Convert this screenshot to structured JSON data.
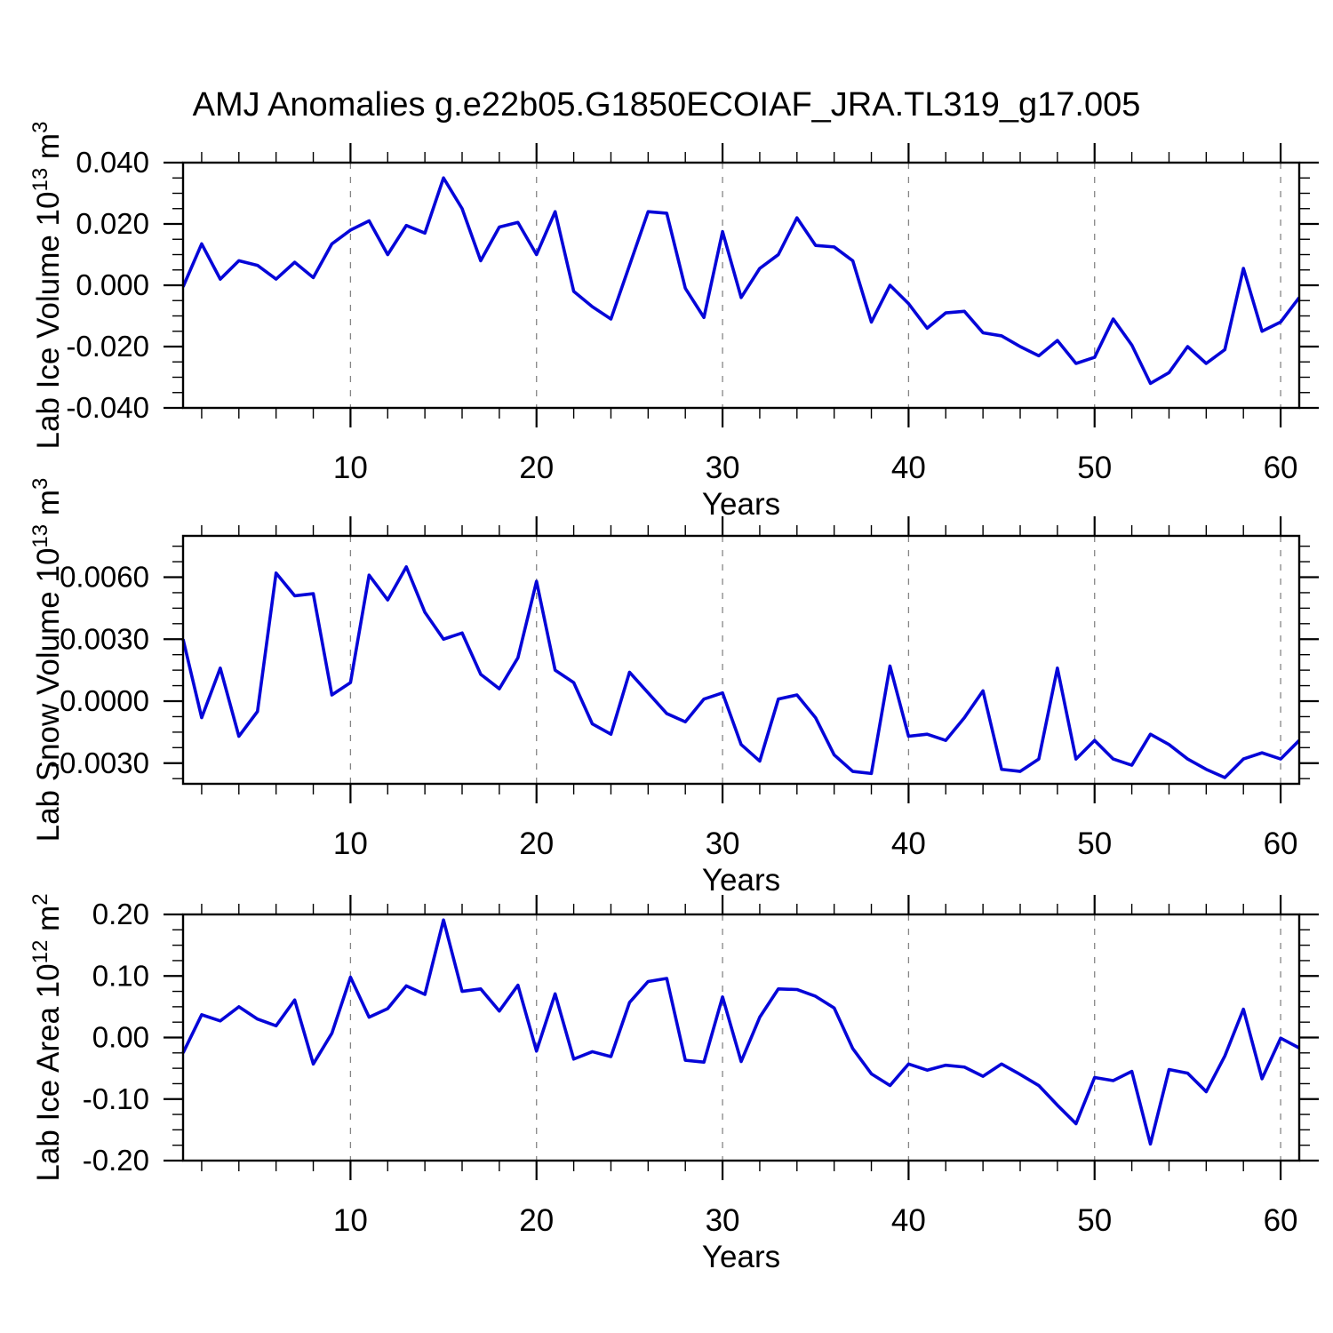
{
  "title": "AMJ Anomalies g.e22b05.G1850ECOIAF_JRA.TL319_g17.005",
  "colors": {
    "line": "#0505D8",
    "axis": "#000000",
    "grid": "#858585",
    "background": "#FFFFFF"
  },
  "xlabel": "Years",
  "x_tick_labels": [
    "10",
    "20",
    "30",
    "40",
    "50",
    "60"
  ],
  "chart_data": {
    "type": "line",
    "legend": "none",
    "grid": "vertical dashed lines at major x ticks",
    "x_label": "Years",
    "xlim": [
      1,
      61
    ],
    "x_major_ticks": [
      10,
      20,
      30,
      40,
      50,
      60
    ],
    "x_minor_tick_step": 2,
    "x_years": [
      1,
      2,
      3,
      4,
      5,
      6,
      7,
      8,
      9,
      10,
      11,
      12,
      13,
      14,
      15,
      16,
      17,
      18,
      19,
      20,
      21,
      22,
      23,
      24,
      25,
      26,
      27,
      28,
      29,
      30,
      31,
      32,
      33,
      34,
      35,
      36,
      37,
      38,
      39,
      40,
      41,
      42,
      43,
      44,
      45,
      46,
      47,
      48,
      49,
      50,
      51,
      52,
      53,
      54,
      55,
      56,
      57,
      58,
      59,
      60,
      61
    ],
    "panels": [
      {
        "name": "lab-ice-volume",
        "ylabel_text": "Lab Ice Volume 10^13 m^3",
        "ylabel_parts": [
          [
            "Lab Ice Volume 10",
            "n"
          ],
          [
            "13",
            "s"
          ],
          [
            " m",
            "n"
          ],
          [
            "3",
            "s"
          ]
        ],
        "ylim": [
          -0.04,
          0.04
        ],
        "y_major_ticks": [
          0.04,
          0.02,
          0.0,
          -0.02,
          -0.04
        ],
        "y_tick_labels": [
          "0.040",
          "0.020",
          "0.000",
          "-0.020",
          "-0.040"
        ],
        "y_minor_step": 0.005,
        "values": [
          -0.0005,
          0.0135,
          0.002,
          0.008,
          0.0065,
          0.002,
          0.0075,
          0.0025,
          0.0135,
          0.018,
          0.021,
          0.01,
          0.0195,
          0.017,
          0.035,
          0.025,
          0.008,
          0.019,
          0.0205,
          0.01,
          0.024,
          -0.002,
          -0.007,
          -0.011,
          0.0065,
          0.024,
          0.0235,
          -0.001,
          -0.0105,
          0.0175,
          -0.004,
          0.0055,
          0.01,
          0.022,
          0.013,
          0.0125,
          0.008,
          -0.012,
          0.0,
          -0.006,
          -0.014,
          -0.009,
          -0.0085,
          -0.0155,
          -0.0165,
          -0.02,
          -0.023,
          -0.018,
          -0.0255,
          -0.0235,
          -0.011,
          -0.0195,
          -0.032,
          -0.0285,
          -0.02,
          -0.0255,
          -0.021,
          0.0055,
          -0.015,
          -0.012,
          -0.004
        ]
      },
      {
        "name": "lab-snow-volume",
        "ylabel_text": "Lab Snow Volume 10^13 m^3",
        "ylabel_parts": [
          [
            "Lab Snow Volume 10",
            "n"
          ],
          [
            "13",
            "s"
          ],
          [
            " m",
            "n"
          ],
          [
            "3",
            "s"
          ]
        ],
        "ylim": [
          -0.004,
          0.008
        ],
        "y_major_ticks": [
          0.006,
          0.003,
          0.0,
          -0.003
        ],
        "y_tick_labels": [
          "0.0060",
          "0.0030",
          "0.0000",
          "-0.0030"
        ],
        "y_minor_step": 0.00075,
        "values": [
          0.003,
          -0.0008,
          0.0016,
          -0.0017,
          -0.0005,
          0.0062,
          0.0051,
          0.0052,
          0.0003,
          0.0009,
          0.0061,
          0.0049,
          0.0065,
          0.0043,
          0.003,
          0.0033,
          0.0013,
          0.0006,
          0.0021,
          0.0058,
          0.0015,
          0.0009,
          -0.0011,
          -0.0016,
          0.0014,
          0.0004,
          -0.0006,
          -0.001,
          0.0001,
          0.0004,
          -0.0021,
          -0.0029,
          0.0001,
          0.0003,
          -0.0008,
          -0.0026,
          -0.0034,
          -0.0035,
          0.0017,
          -0.0017,
          -0.0016,
          -0.0019,
          -0.0008,
          0.0005,
          -0.0033,
          -0.0034,
          -0.0028,
          0.0016,
          -0.0028,
          -0.0019,
          -0.0028,
          -0.0031,
          -0.0016,
          -0.0021,
          -0.0028,
          -0.0033,
          -0.0037,
          -0.0028,
          -0.0025,
          -0.0028,
          -0.0019
        ]
      },
      {
        "name": "lab-ice-area",
        "ylabel_text": "Lab Ice Area 10^12 m^2",
        "ylabel_parts": [
          [
            "Lab Ice Area 10",
            "n"
          ],
          [
            "12",
            "s"
          ],
          [
            " m",
            "n"
          ],
          [
            "2",
            "s"
          ]
        ],
        "ylim": [
          -0.2,
          0.2
        ],
        "y_major_ticks": [
          0.2,
          0.1,
          0.0,
          -0.1,
          -0.2
        ],
        "y_tick_labels": [
          "0.20",
          "0.10",
          "0.00",
          "-0.10",
          "-0.20"
        ],
        "y_minor_step": 0.025,
        "values": [
          -0.025,
          0.037,
          0.027,
          0.05,
          0.03,
          0.019,
          0.061,
          -0.043,
          0.007,
          0.098,
          0.033,
          0.047,
          0.084,
          0.07,
          0.191,
          0.075,
          0.079,
          0.043,
          0.085,
          -0.022,
          0.071,
          -0.035,
          -0.023,
          -0.031,
          0.057,
          0.091,
          0.096,
          -0.037,
          -0.04,
          0.066,
          -0.039,
          0.033,
          0.079,
          0.078,
          0.067,
          0.048,
          -0.018,
          -0.059,
          -0.078,
          -0.043,
          -0.053,
          -0.045,
          -0.048,
          -0.063,
          -0.043,
          -0.06,
          -0.078,
          -0.11,
          -0.14,
          -0.065,
          -0.07,
          -0.055,
          -0.173,
          -0.052,
          -0.058,
          -0.088,
          -0.03,
          0.046,
          -0.067,
          -0.001,
          -0.017
        ]
      }
    ]
  }
}
